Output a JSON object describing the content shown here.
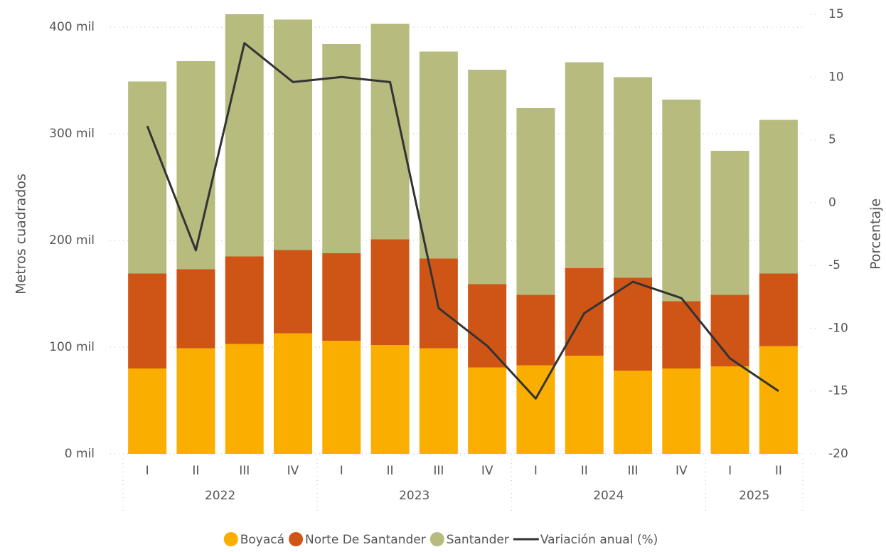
{
  "chart_data": {
    "type": "stacked-bar-line",
    "y_label": "Metros cuadrados",
    "y2_label": "Porcentaje",
    "groups": [
      {
        "name": "2022",
        "categories": [
          "I",
          "II",
          "III",
          "IV"
        ]
      },
      {
        "name": "2023",
        "categories": [
          "I",
          "II",
          "III",
          "IV"
        ]
      },
      {
        "name": "2024",
        "categories": [
          "I",
          "II",
          "III",
          "IV"
        ]
      },
      {
        "name": "2025",
        "categories": [
          "I",
          "II"
        ]
      }
    ],
    "series": [
      {
        "name": "Boyacá",
        "color": "#f9ae00",
        "values": [
          80,
          99,
          103,
          113,
          106,
          102,
          99,
          81,
          83,
          92,
          78,
          80,
          82,
          101
        ]
      },
      {
        "name": "Norte De Santander",
        "color": "#cf5516",
        "values": [
          89,
          74,
          82,
          78,
          82,
          99,
          84,
          78,
          66,
          82,
          87,
          63,
          67,
          68
        ]
      },
      {
        "name": "Santander",
        "color": "#b8bb7e",
        "values": [
          180,
          195,
          227,
          216,
          196,
          202,
          194,
          201,
          175,
          193,
          188,
          189,
          135,
          144
        ]
      },
      {
        "name": "Variación anual (%)",
        "color": "#333333",
        "axis": "y2",
        "type": "line",
        "values": [
          6.1,
          -3.8,
          12.7,
          9.6,
          10.0,
          9.6,
          -8.4,
          -11.4,
          -15.6,
          -8.8,
          -6.3,
          -7.6,
          -12.4,
          -15.0
        ]
      }
    ],
    "ylim": [
      0,
      412
    ],
    "yticks": [
      {
        "value": 0,
        "label": "0 mil"
      },
      {
        "value": 100,
        "label": "100 mil"
      },
      {
        "value": 200,
        "label": "200 mil"
      },
      {
        "value": 300,
        "label": "300 mil"
      },
      {
        "value": 400,
        "label": "400 mil"
      }
    ],
    "y2lim": [
      -20,
      15
    ],
    "y2ticks": [
      -20,
      -15,
      -10,
      -5,
      0,
      5,
      10,
      15
    ],
    "grid": true
  }
}
